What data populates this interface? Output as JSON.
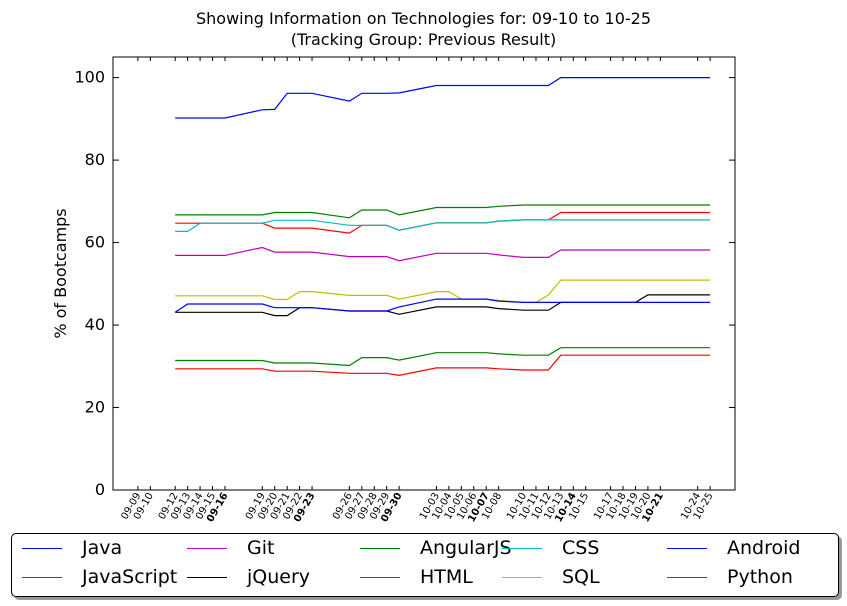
{
  "chart_data": {
    "type": "line",
    "title": "Showing Information on Technologies for: 09-10 to 10-25",
    "subtitle": "(Tracking Group: Previous Result)",
    "xlabel": "",
    "ylabel": "% of Bootcamps",
    "ylim": [
      0,
      105
    ],
    "yticks": [
      0,
      20,
      40,
      60,
      80,
      100
    ],
    "grid": false,
    "legend_position": "bottom",
    "x_range": [
      "09-07",
      "10-27"
    ],
    "x": [
      "09-09",
      "09-10",
      "09-12",
      "09-13",
      "09-14",
      "09-15",
      "09-16",
      "09-19",
      "09-20",
      "09-21",
      "09-22",
      "09-23",
      "09-26",
      "09-27",
      "09-28",
      "09-29",
      "09-30",
      "10-03",
      "10-04",
      "10-05",
      "10-06",
      "10-07",
      "10-08",
      "10-10",
      "10-11",
      "10-12",
      "10-13",
      "10-14",
      "10-15",
      "10-17",
      "10-18",
      "10-19",
      "10-20",
      "10-21",
      "10-24",
      "10-25"
    ],
    "bold_ticks": [
      "09-16",
      "09-23",
      "09-30",
      "10-07",
      "10-14",
      "10-21"
    ],
    "series": [
      {
        "name": "Java",
        "color": "#0000ff",
        "x": [
          "09-12",
          "09-13",
          "09-14",
          "09-15",
          "09-16",
          "09-19",
          "09-20",
          "09-21",
          "09-22",
          "09-23",
          "09-26",
          "09-27",
          "09-28",
          "09-29",
          "09-30",
          "10-03",
          "10-04",
          "10-05",
          "10-06",
          "10-07",
          "10-08",
          "10-10",
          "10-11",
          "10-12",
          "10-13",
          "10-14",
          "10-15",
          "10-17",
          "10-18",
          "10-19",
          "10-20",
          "10-21",
          "10-24",
          "10-25"
        ],
        "values": [
          90.2,
          90.2,
          90.2,
          90.2,
          90.2,
          92.2,
          92.3,
          96.2,
          96.2,
          96.2,
          94.3,
          96.2,
          96.2,
          96.2,
          96.3,
          98.1,
          98.1,
          98.1,
          98.1,
          98.1,
          98.1,
          98.1,
          98.1,
          98.1,
          100,
          100,
          100,
          100,
          100,
          100,
          100,
          100,
          100,
          100
        ]
      },
      {
        "name": "JavaScript",
        "color": "#ff0000",
        "x": [
          "09-12",
          "09-13",
          "09-14",
          "09-15",
          "09-16",
          "09-19",
          "09-20",
          "09-21",
          "09-22",
          "09-23",
          "09-26",
          "09-27",
          "09-28",
          "09-29",
          "09-30",
          "10-03",
          "10-04",
          "10-05",
          "10-06",
          "10-07",
          "10-08",
          "10-10",
          "10-11",
          "10-12",
          "10-13",
          "10-14",
          "10-15",
          "10-17",
          "10-18",
          "10-19",
          "10-20",
          "10-21",
          "10-24",
          "10-25"
        ],
        "values": [
          64.7,
          64.7,
          64.7,
          64.7,
          64.7,
          64.7,
          63.5,
          63.5,
          63.5,
          63.5,
          62.3,
          64.2,
          64.2,
          64.2,
          63.0,
          64.8,
          64.8,
          64.8,
          64.8,
          64.8,
          65.2,
          65.5,
          65.5,
          65.5,
          67.3,
          67.3,
          67.3,
          67.3,
          67.3,
          67.3,
          67.3,
          67.3,
          67.3,
          67.3
        ]
      },
      {
        "name": "Git",
        "color": "#bf00bf",
        "x": [
          "09-12",
          "09-13",
          "09-14",
          "09-15",
          "09-16",
          "09-19",
          "09-20",
          "09-21",
          "09-22",
          "09-23",
          "09-26",
          "09-27",
          "09-28",
          "09-29",
          "09-30",
          "10-03",
          "10-04",
          "10-05",
          "10-06",
          "10-07",
          "10-08",
          "10-10",
          "10-11",
          "10-12",
          "10-13",
          "10-14",
          "10-15",
          "10-17",
          "10-18",
          "10-19",
          "10-20",
          "10-21",
          "10-24",
          "10-25"
        ],
        "values": [
          56.9,
          56.9,
          56.9,
          56.9,
          56.9,
          58.8,
          57.7,
          57.7,
          57.7,
          57.7,
          56.6,
          56.6,
          56.6,
          56.6,
          55.6,
          57.4,
          57.4,
          57.4,
          57.4,
          57.4,
          57.0,
          56.4,
          56.4,
          56.4,
          58.2,
          58.2,
          58.2,
          58.2,
          58.2,
          58.2,
          58.2,
          58.2,
          58.2,
          58.2
        ]
      },
      {
        "name": "jQuery",
        "color": "#000000",
        "x": [
          "09-12",
          "09-13",
          "09-14",
          "09-15",
          "09-16",
          "09-19",
          "09-20",
          "09-21",
          "09-22",
          "09-23",
          "09-26",
          "09-27",
          "09-28",
          "09-29",
          "09-30",
          "10-03",
          "10-04",
          "10-05",
          "10-06",
          "10-07",
          "10-08",
          "10-10",
          "10-11",
          "10-12",
          "10-13",
          "10-14",
          "10-15",
          "10-17",
          "10-18",
          "10-19",
          "10-20",
          "10-21",
          "10-24",
          "10-25"
        ],
        "values": [
          43.1,
          43.1,
          43.1,
          43.1,
          43.1,
          43.1,
          42.3,
          42.3,
          44.2,
          44.2,
          43.4,
          43.4,
          43.4,
          43.4,
          42.6,
          44.4,
          44.4,
          44.4,
          44.4,
          44.4,
          44.0,
          43.6,
          43.6,
          43.6,
          45.5,
          45.5,
          45.5,
          45.5,
          45.5,
          45.5,
          47.3,
          47.3,
          47.3,
          47.3
        ]
      },
      {
        "name": "AngularJS",
        "color": "#008000",
        "x": [
          "09-12",
          "09-13",
          "09-14",
          "09-15",
          "09-16",
          "09-19",
          "09-20",
          "09-21",
          "09-22",
          "09-23",
          "09-26",
          "09-27",
          "09-28",
          "09-29",
          "09-30",
          "10-03",
          "10-04",
          "10-05",
          "10-06",
          "10-07",
          "10-08",
          "10-10",
          "10-11",
          "10-12",
          "10-13",
          "10-14",
          "10-15",
          "10-17",
          "10-18",
          "10-19",
          "10-20",
          "10-21",
          "10-24",
          "10-25"
        ],
        "values": [
          66.7,
          66.7,
          66.7,
          66.7,
          66.7,
          66.7,
          67.3,
          67.3,
          67.3,
          67.3,
          66.0,
          67.9,
          67.9,
          67.9,
          66.7,
          68.5,
          68.5,
          68.5,
          68.5,
          68.5,
          68.8,
          69.1,
          69.1,
          69.1,
          69.1,
          69.1,
          69.1,
          69.1,
          69.1,
          69.1,
          69.1,
          69.1,
          69.1,
          69.1
        ]
      },
      {
        "name": "HTML",
        "color": "#008000",
        "x": [
          "09-12",
          "09-13",
          "09-14",
          "09-15",
          "09-16",
          "09-19",
          "09-20",
          "09-21",
          "09-22",
          "09-23",
          "09-26",
          "09-27",
          "09-28",
          "09-29",
          "09-30",
          "10-03",
          "10-04",
          "10-05",
          "10-06",
          "10-07",
          "10-08",
          "10-10",
          "10-11",
          "10-12",
          "10-13",
          "10-14",
          "10-15",
          "10-17",
          "10-18",
          "10-19",
          "10-20",
          "10-21",
          "10-24",
          "10-25"
        ],
        "values": [
          31.4,
          31.4,
          31.4,
          31.4,
          31.4,
          31.4,
          30.8,
          30.8,
          30.8,
          30.8,
          30.2,
          32.1,
          32.1,
          32.1,
          31.5,
          33.3,
          33.3,
          33.3,
          33.3,
          33.3,
          33.0,
          32.7,
          32.7,
          32.7,
          34.5,
          34.5,
          34.5,
          34.5,
          34.5,
          34.5,
          34.5,
          34.5,
          34.5,
          34.5
        ]
      },
      {
        "name": "CSS",
        "color": "#00bfbf",
        "x": [
          "09-12",
          "09-13",
          "09-14",
          "09-15",
          "09-16",
          "09-19",
          "09-20",
          "09-21",
          "09-22",
          "09-23",
          "09-26",
          "09-27",
          "09-28",
          "09-29",
          "09-30",
          "10-03",
          "10-04",
          "10-05",
          "10-06",
          "10-07",
          "10-08",
          "10-10",
          "10-11",
          "10-12",
          "10-13",
          "10-14",
          "10-15",
          "10-17",
          "10-18",
          "10-19",
          "10-20",
          "10-21",
          "10-24",
          "10-25"
        ],
        "values": [
          62.7,
          62.7,
          64.7,
          64.7,
          64.7,
          64.7,
          65.4,
          65.4,
          65.4,
          65.4,
          64.2,
          64.2,
          64.2,
          64.2,
          63.0,
          64.8,
          64.8,
          64.8,
          64.8,
          64.8,
          65.2,
          65.5,
          65.5,
          65.5,
          65.5,
          65.5,
          65.5,
          65.5,
          65.5,
          65.5,
          65.5,
          65.5,
          65.5,
          65.5
        ]
      },
      {
        "name": "SQL",
        "color": "#bfbf00",
        "x": [
          "09-12",
          "09-13",
          "09-14",
          "09-15",
          "09-16",
          "09-19",
          "09-20",
          "09-21",
          "09-22",
          "09-23",
          "09-26",
          "09-27",
          "09-28",
          "09-29",
          "09-30",
          "10-03",
          "10-04",
          "10-05",
          "10-06",
          "10-07",
          "10-08",
          "10-10",
          "10-11",
          "10-12",
          "10-13",
          "10-14",
          "10-15",
          "10-17",
          "10-18",
          "10-19",
          "10-20",
          "10-21",
          "10-24",
          "10-25"
        ],
        "values": [
          47.1,
          47.1,
          47.1,
          47.1,
          47.1,
          47.1,
          46.2,
          46.2,
          48.1,
          48.1,
          47.2,
          47.2,
          47.2,
          47.2,
          46.3,
          48.1,
          48.1,
          46.3,
          46.3,
          46.3,
          46.0,
          45.5,
          45.5,
          47.3,
          50.9,
          50.9,
          50.9,
          50.9,
          50.9,
          50.9,
          50.9,
          50.9,
          50.9,
          50.9
        ]
      },
      {
        "name": "Android",
        "color": "#0000ff",
        "x": [
          "09-12",
          "09-13",
          "09-14",
          "09-15",
          "09-16",
          "09-19",
          "09-20",
          "09-21",
          "09-22",
          "09-23",
          "09-26",
          "09-27",
          "09-28",
          "09-29",
          "09-30",
          "10-03",
          "10-04",
          "10-05",
          "10-06",
          "10-07",
          "10-08",
          "10-10",
          "10-11",
          "10-12",
          "10-13",
          "10-14",
          "10-15",
          "10-17",
          "10-18",
          "10-19",
          "10-20",
          "10-21",
          "10-24",
          "10-25"
        ],
        "values": [
          43.1,
          45.1,
          45.1,
          45.1,
          45.1,
          45.1,
          44.2,
          44.2,
          44.2,
          44.2,
          43.4,
          43.4,
          43.4,
          43.4,
          44.4,
          46.3,
          46.3,
          46.3,
          46.3,
          46.3,
          45.8,
          45.5,
          45.5,
          45.5,
          45.5,
          45.5,
          45.5,
          45.5,
          45.5,
          45.5,
          45.5,
          45.5,
          45.5,
          45.5
        ]
      },
      {
        "name": "Python",
        "color": "#ff0000",
        "x": [
          "09-12",
          "09-13",
          "09-14",
          "09-15",
          "09-16",
          "09-19",
          "09-20",
          "09-21",
          "09-22",
          "09-23",
          "09-26",
          "09-27",
          "09-28",
          "09-29",
          "09-30",
          "10-03",
          "10-04",
          "10-05",
          "10-06",
          "10-07",
          "10-08",
          "10-10",
          "10-11",
          "10-12",
          "10-13",
          "10-14",
          "10-15",
          "10-17",
          "10-18",
          "10-19",
          "10-20",
          "10-21",
          "10-24",
          "10-25"
        ],
        "values": [
          29.4,
          29.4,
          29.4,
          29.4,
          29.4,
          29.4,
          28.8,
          28.8,
          28.8,
          28.8,
          28.3,
          28.3,
          28.3,
          28.3,
          27.8,
          29.6,
          29.6,
          29.6,
          29.6,
          29.6,
          29.4,
          29.1,
          29.1,
          29.1,
          32.7,
          32.7,
          32.7,
          32.7,
          32.7,
          32.7,
          32.7,
          32.7,
          32.7,
          32.7
        ]
      }
    ],
    "legend_order": [
      "Java",
      "JavaScript",
      "Git",
      "jQuery",
      "AngularJS",
      "HTML",
      "CSS",
      "SQL",
      "Android",
      "Python"
    ]
  }
}
